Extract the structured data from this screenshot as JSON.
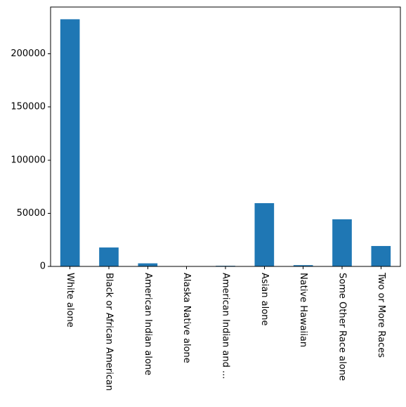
{
  "chart_data": {
    "type": "bar",
    "categories": [
      "White alone",
      "Black or African American",
      "American Indian alone",
      "Alaska Native alone",
      "American Indian and ...",
      "Asian alone",
      "Native Hawaiian",
      "Some Other Race alone",
      "Two or More Races"
    ],
    "values": [
      232500,
      17800,
      2900,
      150,
      600,
      59500,
      1200,
      44300,
      19200
    ],
    "ylim": [
      0,
      244000
    ],
    "yticks": [
      0,
      50000,
      100000,
      150000,
      200000
    ],
    "ytick_labels": [
      "0",
      "50000",
      "100000",
      "150000",
      "200000"
    ],
    "bar_color": "#1f77b4",
    "grid": false,
    "legend": "none",
    "x_tick_label_rotation": "vertical"
  }
}
